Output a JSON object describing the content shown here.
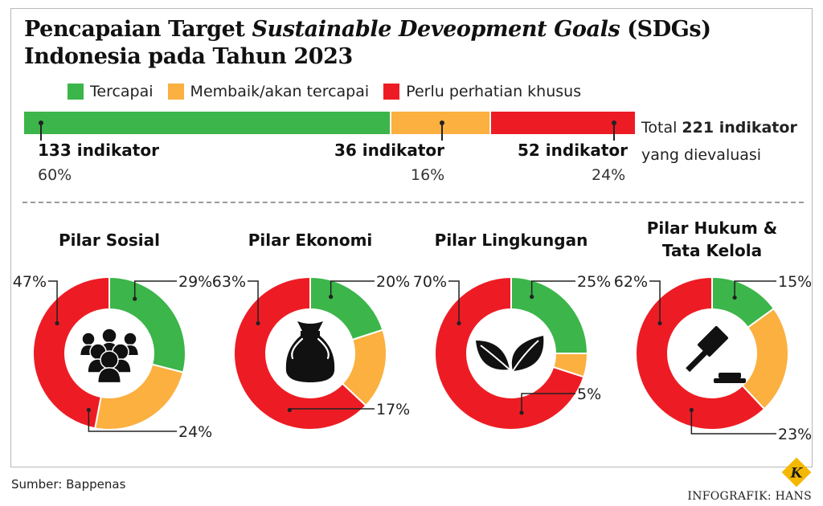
{
  "title": {
    "part1": "Pencapaian Target ",
    "part2": "Sustainable Deveopment Goals",
    "part3": " (SDGs) Indonesia pada Tahun 2023"
  },
  "legend": [
    {
      "label": "Tercapai",
      "color": "#3cb54a"
    },
    {
      "label": "Membaik/akan tercapai",
      "color": "#fbb040"
    },
    {
      "label": "Perlu perhatian khusus",
      "color": "#ed1c24"
    }
  ],
  "total": {
    "prefix": "Total",
    "bold": "221 indikator",
    "suffix": "yang dievaluasi"
  },
  "chart_data": [
    {
      "type": "bar",
      "stacked": true,
      "categories": [
        "Tercapai",
        "Membaik/akan tercapai",
        "Perlu perhatian khusus"
      ],
      "values": [
        133,
        36,
        52
      ],
      "labels": [
        "133 indikator",
        "36 indikator",
        "52 indikator"
      ],
      "percent_labels": [
        "60%",
        "16%",
        "24%"
      ]
    },
    {
      "type": "pie",
      "donut": true,
      "title": "Pilar Sosial",
      "icon": "people-icon",
      "slices": [
        {
          "label": "29%",
          "value": 29
        },
        {
          "label": "24%",
          "value": 24
        },
        {
          "label": "47%",
          "value": 47
        }
      ]
    },
    {
      "type": "pie",
      "donut": true,
      "title": "Pilar Ekonomi",
      "icon": "money-bag-icon",
      "slices": [
        {
          "label": "20%",
          "value": 20
        },
        {
          "label": "17%",
          "value": 17
        },
        {
          "label": "63%",
          "value": 63
        }
      ]
    },
    {
      "type": "pie",
      "donut": true,
      "title": "Pilar Lingkungan",
      "icon": "leaves-icon",
      "slices": [
        {
          "label": "25%",
          "value": 25
        },
        {
          "label": "5%",
          "value": 5
        },
        {
          "label": "70%",
          "value": 70
        }
      ]
    },
    {
      "type": "pie",
      "donut": true,
      "title_lines": [
        "Pilar Hukum &",
        "Tata Kelola"
      ],
      "icon": "gavel-icon",
      "slices": [
        {
          "label": "15%",
          "value": 15
        },
        {
          "label": "23%",
          "value": 23
        },
        {
          "label": "62%",
          "value": 62
        }
      ]
    }
  ],
  "source": "Sumber: Bappenas",
  "credit": "INFOGRAFIK: HANS",
  "logo_letter": "K"
}
